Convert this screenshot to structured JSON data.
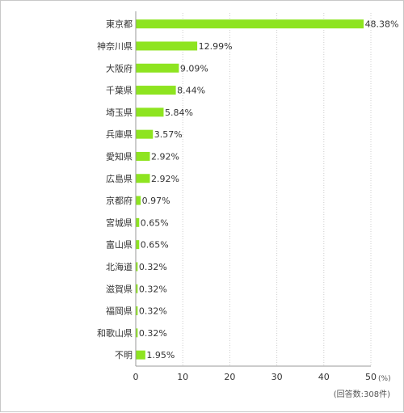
{
  "chart_data": {
    "type": "bar",
    "orientation": "horizontal",
    "categories": [
      "東京都",
      "神奈川県",
      "大阪府",
      "千葉県",
      "埼玉県",
      "兵庫県",
      "愛知県",
      "広島県",
      "京都府",
      "宮城県",
      "富山県",
      "北海道",
      "滋賀県",
      "福岡県",
      "和歌山県",
      "不明"
    ],
    "values": [
      48.38,
      12.99,
      9.09,
      8.44,
      5.84,
      3.57,
      2.92,
      2.92,
      0.97,
      0.65,
      0.65,
      0.32,
      0.32,
      0.32,
      0.32,
      1.95
    ],
    "value_labels": [
      "48.38%",
      "12.99%",
      "9.09%",
      "8.44%",
      "5.84%",
      "3.57%",
      "2.92%",
      "2.92%",
      "0.97%",
      "0.65%",
      "0.65%",
      "0.32%",
      "0.32%",
      "0.32%",
      "0.32%",
      "1.95%"
    ],
    "xlim": [
      0,
      50
    ],
    "xticks": [
      "0",
      "10",
      "20",
      "30",
      "40",
      "50"
    ],
    "unit_label": "(%)",
    "note": "(回答数:308件)",
    "bar_color": "#8ee420",
    "grid": "vertical dotted"
  }
}
